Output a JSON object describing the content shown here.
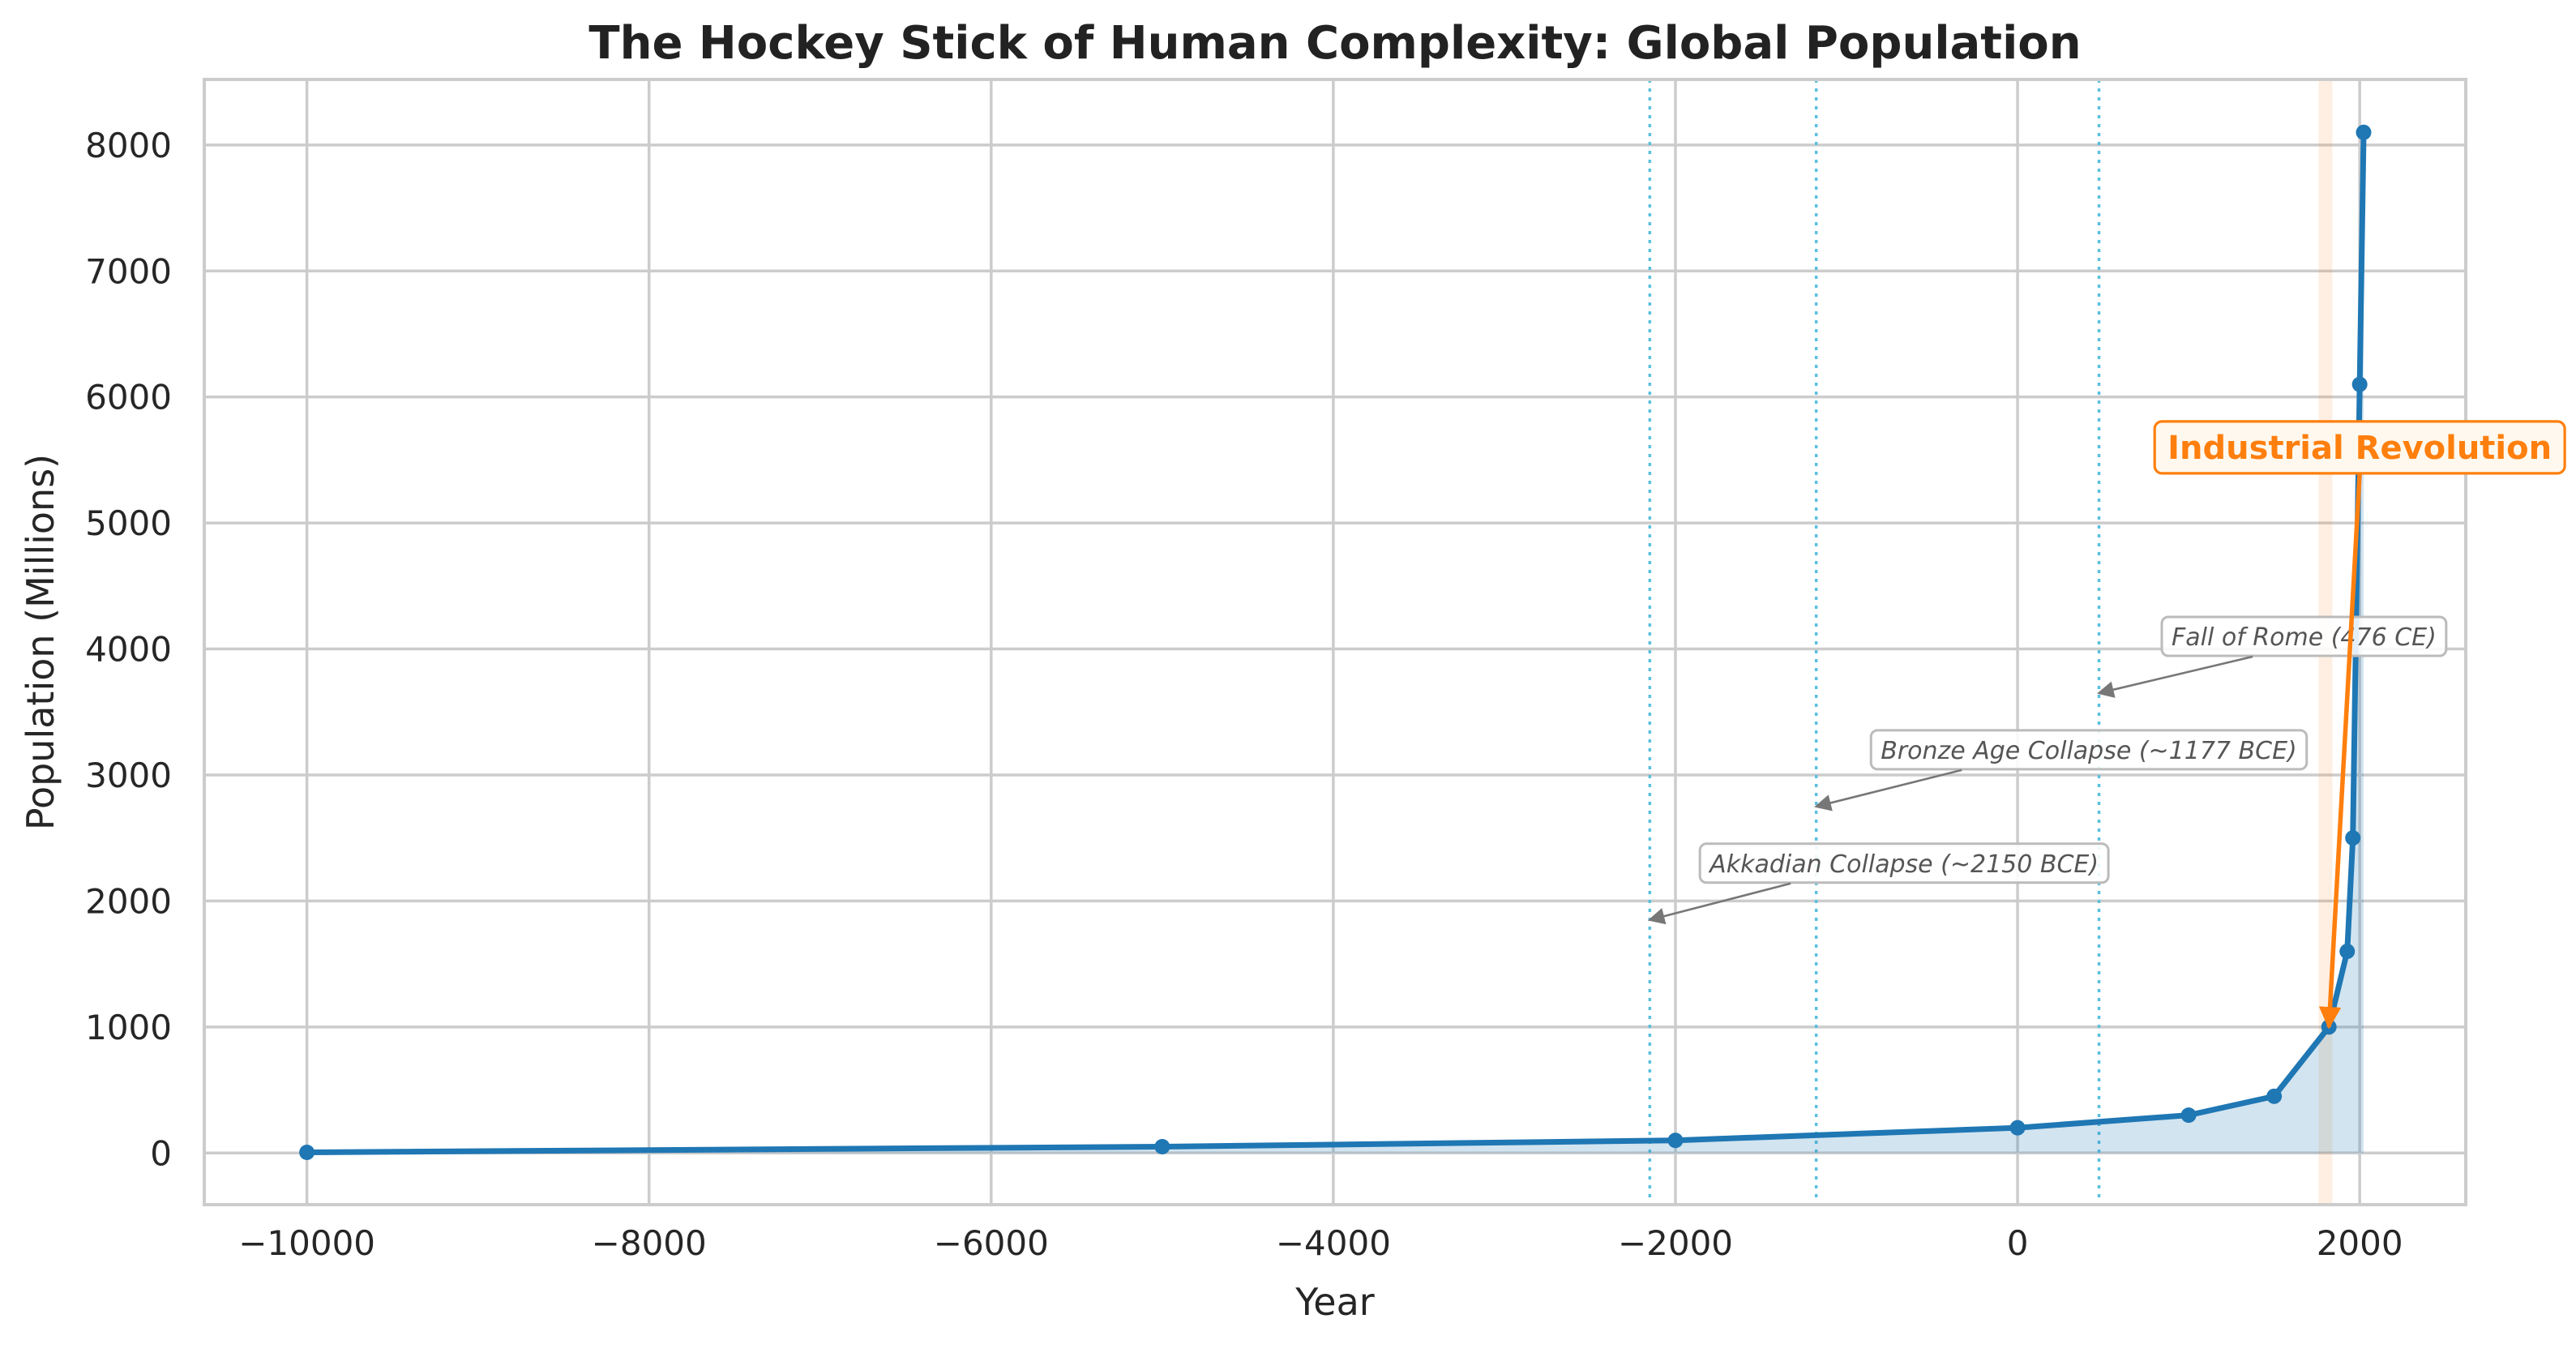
{
  "chart_data": {
    "type": "line",
    "title": "The Hockey Stick of Human Complexity: Global Population",
    "xlabel": "Year",
    "ylabel": "Population (Millions)",
    "xlim": [
      -10600,
      2620
    ],
    "ylim": [
      -410,
      8520
    ],
    "x_ticks": [
      -10000,
      -8000,
      -6000,
      -4000,
      -2000,
      0,
      2000
    ],
    "y_ticks": [
      0,
      1000,
      2000,
      3000,
      4000,
      5000,
      6000,
      7000,
      8000
    ],
    "grid": true,
    "series": [
      {
        "color": "#1f77b4",
        "area_fill": true,
        "x": [
          -10000,
          -5000,
          -2000,
          0,
          1000,
          1500,
          1820,
          1927,
          1960,
          2000,
          2023
        ],
        "y": [
          5,
          50,
          100,
          200,
          300,
          450,
          1000,
          1600,
          2500,
          6100,
          8100
        ]
      }
    ],
    "collapse_lines": [
      -2150,
      -1177,
      476
    ],
    "annotations": [
      {
        "text": "Akkadian Collapse (~2150 BCE)",
        "x": -2150,
        "y": 1850,
        "text_x": -1800,
        "text_y": 2300
      },
      {
        "text": "Bronze Age Collapse (~1177 BCE)",
        "x": -1177,
        "y": 2750,
        "text_x": -800,
        "text_y": 3200
      },
      {
        "text": "Fall of Rome (476 CE)",
        "x": 476,
        "y": 3650,
        "text_x": 900,
        "text_y": 4100
      }
    ],
    "highlight": {
      "label": "Industrial Revolution",
      "span": [
        1760,
        1840
      ],
      "point_x": 1820,
      "point_y": 1000,
      "label_x": 2000,
      "label_y": 5600,
      "color": "#ff7f0e"
    }
  }
}
